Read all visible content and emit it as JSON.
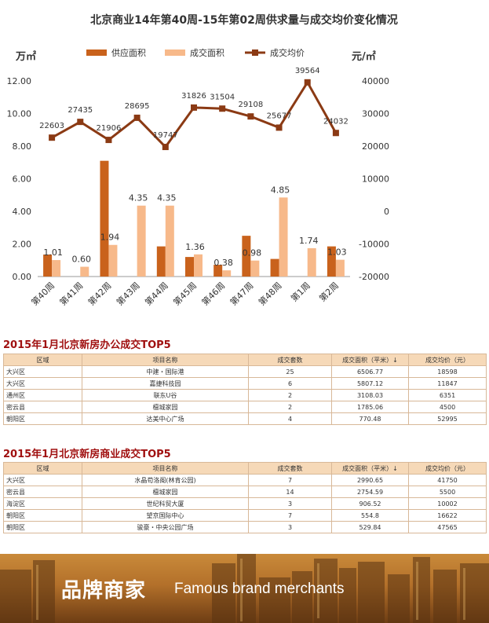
{
  "chart_data": {
    "type": "bar",
    "title": "北京商业14年第40周-15年第02周供求量与成交均价变化情况",
    "y_left_unit": "万㎡",
    "y_right_unit": "元/㎡",
    "y_left_ticks": [
      "0.00",
      "2.00",
      "4.00",
      "6.00",
      "8.00",
      "10.00",
      "12.00"
    ],
    "y_right_ticks": [
      "-20000",
      "-10000",
      "0",
      "10000",
      "20000",
      "30000",
      "40000"
    ],
    "ylim_left": [
      0,
      12
    ],
    "ylim_right": [
      -20000,
      40000
    ],
    "categories": [
      "第40周",
      "第41周",
      "第42周",
      "第43周",
      "第44周",
      "第45周",
      "第46周",
      "第47周",
      "第48周",
      "第1周",
      "第2周"
    ],
    "series": [
      {
        "name": "供应面积",
        "kind": "bar",
        "color": "#c9621c",
        "values": [
          1.35,
          0,
          7.1,
          0,
          1.85,
          1.2,
          0.72,
          2.5,
          1.08,
          0,
          1.85
        ]
      },
      {
        "name": "成交面积",
        "kind": "bar",
        "color": "#f7b98a",
        "values": [
          1.01,
          0.6,
          1.94,
          4.35,
          4.35,
          1.36,
          0.38,
          0.98,
          4.85,
          1.74,
          1.03
        ],
        "labels": [
          "1.01",
          "0.60",
          "1.94",
          "4.35",
          "4.35",
          "1.36",
          "0.38",
          "0.98",
          "4.85",
          "1.74",
          "1.03"
        ]
      },
      {
        "name": "成交均价",
        "kind": "line",
        "axis": "right",
        "color": "#8b3a14",
        "values": [
          22603,
          27435,
          21906,
          28695,
          19747,
          31826,
          31504,
          29108,
          25677,
          39564,
          24032
        ],
        "labels": [
          "22603",
          "27435",
          "21906",
          "28695",
          "19747",
          "31826",
          "31504",
          "29108",
          "25677",
          "39564",
          "24032"
        ]
      }
    ],
    "legend_position": "top"
  },
  "office": {
    "title": "2015年1月北京新房办公成交TOP5",
    "headers": [
      "区域",
      "项目名称",
      "成交套数",
      "成交面积（平米）↓",
      "成交均价（元）"
    ],
    "rows": [
      [
        "大兴区",
        "中建・国际港",
        "25",
        "6506.77",
        "18598"
      ],
      [
        "大兴区",
        "嘉捷科技园",
        "6",
        "5807.12",
        "11847"
      ],
      [
        "通州区",
        "联东U谷",
        "2",
        "3108.03",
        "6351"
      ],
      [
        "密云县",
        "檀城家园",
        "2",
        "1785.06",
        "4500"
      ],
      [
        "朝阳区",
        "达美中心广场",
        "4",
        "770.48",
        "52995"
      ]
    ]
  },
  "commercial": {
    "title": "2015年1月北京新房商业成交TOP5",
    "headers": [
      "区域",
      "项目名称",
      "成交套数",
      "成交面积（平米）↓",
      "成交均价（元）"
    ],
    "rows": [
      [
        "大兴区",
        "水晶苟洛阁(林肯公园)",
        "7",
        "2990.65",
        "41750"
      ],
      [
        "密云县",
        "檀城家园",
        "14",
        "2754.59",
        "5500"
      ],
      [
        "海淀区",
        "世纪科贸大厦",
        "3",
        "906.52",
        "10002"
      ],
      [
        "朝阳区",
        "望京国际中心",
        "7",
        "554.8",
        "16622"
      ],
      [
        "朝阳区",
        "骏豪・中央公园广场",
        "3",
        "529.84",
        "47565"
      ]
    ]
  },
  "banner": {
    "cn": "品牌商家",
    "en": "Famous  brand merchants"
  }
}
